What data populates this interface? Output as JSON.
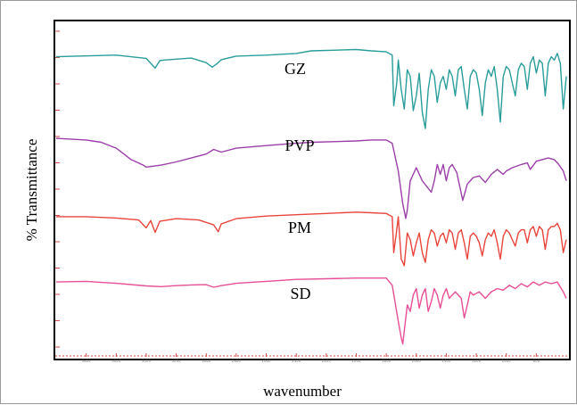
{
  "chart_data": {
    "type": "line",
    "title": "",
    "xlabel": "wavenumber",
    "ylabel": "% Transmittance",
    "x_direction": "decreasing",
    "xlim": [
      4000,
      600
    ],
    "x_ticks": [
      "3800",
      "3600",
      "3400",
      "3200",
      "3000",
      "2800",
      "2600",
      "2400",
      "2200",
      "2000",
      "1800",
      "1600",
      "1400",
      "1200",
      "1000",
      "800"
    ],
    "grid": false,
    "legend": "inline labels",
    "series": [
      {
        "name": "GZ",
        "color": "#2a9d9a",
        "x": [
          4000,
          3600,
          3400,
          3340,
          3310,
          3280,
          3100,
          3000,
          2960,
          2925,
          2900,
          2800,
          2600,
          2400,
          2300,
          2000,
          1900,
          1800,
          1760,
          1750,
          1730,
          1720,
          1700,
          1680,
          1660,
          1640,
          1620,
          1600,
          1580,
          1560,
          1540,
          1520,
          1500,
          1480,
          1460,
          1440,
          1420,
          1400,
          1380,
          1360,
          1340,
          1320,
          1300,
          1280,
          1260,
          1240,
          1220,
          1200,
          1180,
          1160,
          1140,
          1120,
          1100,
          1080,
          1060,
          1040,
          1020,
          1000,
          980,
          960,
          940,
          920,
          900,
          880,
          860,
          840,
          820,
          800,
          780,
          760,
          740,
          720,
          700,
          680,
          660,
          640,
          620,
          600
        ],
        "y": [
          90.0,
          90.5,
          89.5,
          86.5,
          88.8,
          89.0,
          89.6,
          88.2,
          86.8,
          88.0,
          89.1,
          90.2,
          90.5,
          91.0,
          91.8,
          92.2,
          91.8,
          91.5,
          90.5,
          75.0,
          82.0,
          89.0,
          80.0,
          74.0,
          86.0,
          84.0,
          73.5,
          78.0,
          85.0,
          73.0,
          68.0,
          80.0,
          86.0,
          84.0,
          76.0,
          82.0,
          84.0,
          80.0,
          86.0,
          84.0,
          78.0,
          86.0,
          87.0,
          80.0,
          74.0,
          84.0,
          86.0,
          85.0,
          80.0,
          72.0,
          82.0,
          86.0,
          84.0,
          87.0,
          80.0,
          70.0,
          84.0,
          87.0,
          86.0,
          82.0,
          78.0,
          86.0,
          88.0,
          87.0,
          80.0,
          88.0,
          90.0,
          85.0,
          89.0,
          88.0,
          78.0,
          88.0,
          90.0,
          89.0,
          91.0,
          88.0,
          74.0,
          84.0
        ]
      },
      {
        "name": "PVP",
        "color": "#9b3fa8",
        "x": [
          4000,
          3800,
          3700,
          3600,
          3500,
          3420,
          3400,
          3300,
          3200,
          3100,
          3000,
          2950,
          2900,
          2800,
          2600,
          2400,
          2300,
          2000,
          1900,
          1800,
          1760,
          1720,
          1690,
          1670,
          1660,
          1640,
          1600,
          1560,
          1500,
          1480,
          1460,
          1440,
          1420,
          1400,
          1380,
          1360,
          1330,
          1290,
          1260,
          1220,
          1180,
          1140,
          1100,
          1060,
          1020,
          1000,
          960,
          900,
          860,
          840,
          800,
          760,
          720,
          680,
          650,
          620,
          600
        ],
        "y": [
          65.0,
          64.5,
          63.8,
          62.0,
          58.5,
          56.8,
          56.2,
          56.8,
          57.8,
          59.0,
          60.2,
          61.6,
          60.8,
          62.0,
          62.8,
          63.5,
          63.8,
          64.2,
          64.5,
          64.5,
          63.5,
          55.0,
          45.0,
          40.5,
          43.0,
          52.0,
          56.0,
          52.0,
          48.5,
          52.0,
          57.0,
          54.0,
          57.0,
          52.0,
          56.0,
          57.0,
          54.5,
          46.0,
          51.0,
          53.0,
          53.5,
          51.5,
          54.0,
          55.5,
          54.0,
          55.0,
          56.0,
          57.0,
          57.5,
          55.5,
          58.0,
          58.5,
          59.0,
          58.5,
          57.0,
          55.0,
          52.0
        ]
      },
      {
        "name": "PM",
        "color": "#e8453c",
        "x": [
          4000,
          3800,
          3600,
          3450,
          3400,
          3370,
          3340,
          3310,
          3200,
          3050,
          2950,
          2920,
          2900,
          2800,
          2600,
          2400,
          2200,
          2000,
          1900,
          1800,
          1760,
          1750,
          1730,
          1720,
          1700,
          1680,
          1660,
          1640,
          1620,
          1600,
          1580,
          1560,
          1540,
          1520,
          1500,
          1480,
          1460,
          1440,
          1420,
          1400,
          1380,
          1360,
          1340,
          1320,
          1300,
          1280,
          1260,
          1240,
          1220,
          1200,
          1180,
          1160,
          1140,
          1120,
          1100,
          1080,
          1060,
          1040,
          1020,
          1000,
          980,
          960,
          940,
          920,
          900,
          880,
          860,
          840,
          820,
          800,
          780,
          760,
          740,
          720,
          700,
          680,
          660,
          640,
          620,
          600
        ],
        "y": [
          41.0,
          41.0,
          40.6,
          40.0,
          37.6,
          39.8,
          36.2,
          39.6,
          40.4,
          40.0,
          38.5,
          36.4,
          38.8,
          40.4,
          41.2,
          41.6,
          42.0,
          42.4,
          42.2,
          42.0,
          41.0,
          30.0,
          37.0,
          41.0,
          28.0,
          26.0,
          36.0,
          34.0,
          29.0,
          33.0,
          36.0,
          30.0,
          27.0,
          34.0,
          37.0,
          36.0,
          32.0,
          35.0,
          36.0,
          33.0,
          37.0,
          36.0,
          31.0,
          36.0,
          37.0,
          33.0,
          28.0,
          35.0,
          36.0,
          35.0,
          33.0,
          29.0,
          34.0,
          36.0,
          35.0,
          37.0,
          33.0,
          28.0,
          35.0,
          37.0,
          36.0,
          34.0,
          32.0,
          36.0,
          37.0,
          37.0,
          33.0,
          37.0,
          38.0,
          35.0,
          38.0,
          37.0,
          31.0,
          37.0,
          38.0,
          38.0,
          39.0,
          37.0,
          30.0,
          34.0
        ]
      },
      {
        "name": "SD",
        "color": "#e64f96",
        "x": [
          4000,
          3800,
          3600,
          3400,
          3300,
          3200,
          3100,
          3000,
          2950,
          2900,
          2800,
          2600,
          2400,
          2200,
          2000,
          1900,
          1800,
          1760,
          1720,
          1700,
          1690,
          1680,
          1660,
          1640,
          1620,
          1600,
          1580,
          1560,
          1540,
          1520,
          1500,
          1480,
          1460,
          1440,
          1420,
          1400,
          1380,
          1340,
          1300,
          1280,
          1260,
          1240,
          1220,
          1180,
          1140,
          1100,
          1060,
          1020,
          980,
          940,
          900,
          860,
          820,
          780,
          740,
          700,
          660,
          620,
          600
        ],
        "y": [
          21.0,
          21.2,
          20.6,
          19.8,
          19.6,
          19.9,
          20.1,
          20.2,
          19.4,
          19.9,
          20.6,
          21.2,
          21.8,
          22.0,
          22.2,
          22.2,
          22.2,
          20.0,
          9.0,
          4.0,
          2.0,
          6.0,
          14.0,
          12.0,
          17.0,
          19.0,
          13.0,
          17.0,
          19.0,
          12.0,
          15.0,
          19.0,
          17.0,
          13.0,
          17.0,
          19.0,
          16.0,
          18.0,
          16.0,
          10.0,
          14.0,
          18.0,
          17.0,
          18.0,
          16.0,
          18.0,
          19.0,
          18.5,
          20.0,
          19.0,
          20.5,
          19.5,
          21.0,
          20.0,
          21.0,
          20.5,
          21.0,
          18.0,
          16.0
        ]
      }
    ]
  }
}
